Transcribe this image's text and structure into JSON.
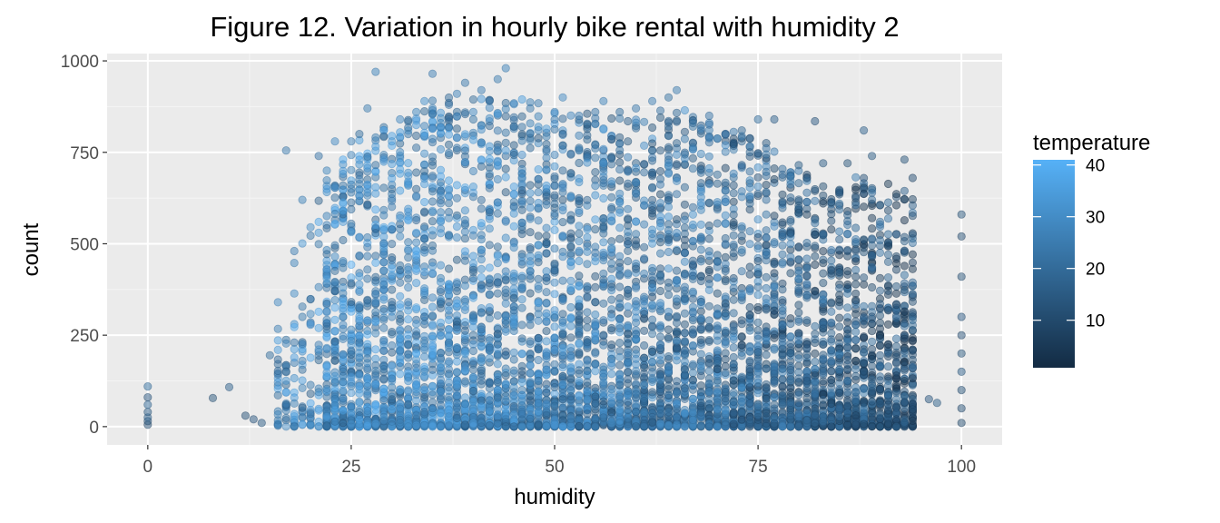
{
  "chart_data": {
    "type": "scatter",
    "title": "Figure 12. Variation in hourly bike rental with humidity 2",
    "xlabel": "humidity",
    "ylabel": "count",
    "xlim": [
      -5,
      105
    ],
    "ylim": [
      -50,
      1020
    ],
    "x_ticks": [
      0,
      25,
      50,
      75,
      100
    ],
    "x_tick_labels": [
      "0",
      "25",
      "50",
      "75",
      "100"
    ],
    "y_ticks": [
      0,
      250,
      500,
      750,
      1000
    ],
    "y_tick_labels": [
      "0",
      "250",
      "500",
      "750",
      "1000"
    ],
    "grid": true,
    "legend": {
      "title": "temperature",
      "placement": "right",
      "type": "colorbar",
      "range": [
        0.82,
        41
      ],
      "ticks": [
        10,
        20,
        30,
        40
      ],
      "tick_labels": [
        "10",
        "20",
        "30",
        "40"
      ],
      "color_low": "#132b43",
      "color_high": "#56b1f7"
    },
    "point_alpha": 0.5,
    "series": [
      {
        "points": [
          {
            "x": 0,
            "y": 5,
            "temp": 12
          },
          {
            "x": 0,
            "y": 15,
            "temp": 14
          },
          {
            "x": 0,
            "y": 25,
            "temp": 18
          },
          {
            "x": 0,
            "y": 40,
            "temp": 16
          },
          {
            "x": 0,
            "y": 60,
            "temp": 20
          },
          {
            "x": 0,
            "y": 80,
            "temp": 15
          },
          {
            "x": 0,
            "y": 110,
            "temp": 22
          },
          {
            "x": 8,
            "y": 78,
            "temp": 14
          },
          {
            "x": 10,
            "y": 108,
            "temp": 18
          },
          {
            "x": 12,
            "y": 30,
            "temp": 13
          },
          {
            "x": 13,
            "y": 20,
            "temp": 15
          },
          {
            "x": 14,
            "y": 10,
            "temp": 16
          },
          {
            "x": 15,
            "y": 195,
            "temp": 22
          },
          {
            "x": 16,
            "y": 340,
            "temp": 30
          },
          {
            "x": 17,
            "y": 755,
            "temp": 25
          },
          {
            "x": 17,
            "y": 60,
            "temp": 20
          },
          {
            "x": 18,
            "y": 480,
            "temp": 27
          },
          {
            "x": 18,
            "y": 230,
            "temp": 24
          },
          {
            "x": 19,
            "y": 620,
            "temp": 28
          },
          {
            "x": 19,
            "y": 300,
            "temp": 26
          },
          {
            "x": 20,
            "y": 545,
            "temp": 31
          },
          {
            "x": 20,
            "y": 90,
            "temp": 18
          },
          {
            "x": 21,
            "y": 740,
            "temp": 24
          },
          {
            "x": 22,
            "y": 700,
            "temp": 29
          },
          {
            "x": 22,
            "y": 430,
            "temp": 33
          },
          {
            "x": 23,
            "y": 780,
            "temp": 30
          },
          {
            "x": 24,
            "y": 590,
            "temp": 35
          },
          {
            "x": 24,
            "y": 10,
            "temp": 14
          },
          {
            "x": 25,
            "y": 780,
            "temp": 27
          },
          {
            "x": 26,
            "y": 800,
            "temp": 22
          },
          {
            "x": 27,
            "y": 870,
            "temp": 26
          },
          {
            "x": 28,
            "y": 970,
            "temp": 28
          },
          {
            "x": 29,
            "y": 730,
            "temp": 33
          },
          {
            "x": 30,
            "y": 780,
            "temp": 34
          },
          {
            "x": 31,
            "y": 840,
            "temp": 30
          },
          {
            "x": 32,
            "y": 800,
            "temp": 25
          },
          {
            "x": 33,
            "y": 860,
            "temp": 29
          },
          {
            "x": 34,
            "y": 890,
            "temp": 32
          },
          {
            "x": 35,
            "y": 965,
            "temp": 27
          },
          {
            "x": 36,
            "y": 820,
            "temp": 26
          },
          {
            "x": 37,
            "y": 880,
            "temp": 24
          },
          {
            "x": 38,
            "y": 910,
            "temp": 28
          },
          {
            "x": 39,
            "y": 940,
            "temp": 25
          },
          {
            "x": 40,
            "y": 860,
            "temp": 30
          },
          {
            "x": 41,
            "y": 920,
            "temp": 27
          },
          {
            "x": 42,
            "y": 890,
            "temp": 24
          },
          {
            "x": 43,
            "y": 950,
            "temp": 26
          },
          {
            "x": 44,
            "y": 980,
            "temp": 28
          },
          {
            "x": 45,
            "y": 820,
            "temp": 22
          },
          {
            "x": 47,
            "y": 870,
            "temp": 25
          },
          {
            "x": 50,
            "y": 860,
            "temp": 28
          },
          {
            "x": 51,
            "y": 900,
            "temp": 30
          },
          {
            "x": 53,
            "y": 850,
            "temp": 27
          },
          {
            "x": 55,
            "y": 860,
            "temp": 24
          },
          {
            "x": 56,
            "y": 890,
            "temp": 28
          },
          {
            "x": 58,
            "y": 860,
            "temp": 22
          },
          {
            "x": 60,
            "y": 870,
            "temp": 25
          },
          {
            "x": 62,
            "y": 890,
            "temp": 27
          },
          {
            "x": 64,
            "y": 900,
            "temp": 23
          },
          {
            "x": 65,
            "y": 920,
            "temp": 26
          },
          {
            "x": 67,
            "y": 830,
            "temp": 22
          },
          {
            "x": 69,
            "y": 850,
            "temp": 24
          },
          {
            "x": 71,
            "y": 800,
            "temp": 21
          },
          {
            "x": 73,
            "y": 810,
            "temp": 20
          },
          {
            "x": 75,
            "y": 840,
            "temp": 22
          },
          {
            "x": 77,
            "y": 840,
            "temp": 18
          },
          {
            "x": 80,
            "y": 715,
            "temp": 17
          },
          {
            "x": 82,
            "y": 835,
            "temp": 15
          },
          {
            "x": 83,
            "y": 720,
            "temp": 16
          },
          {
            "x": 86,
            "y": 720,
            "temp": 14
          },
          {
            "x": 88,
            "y": 810,
            "temp": 18
          },
          {
            "x": 89,
            "y": 740,
            "temp": 16
          },
          {
            "x": 93,
            "y": 730,
            "temp": 14
          },
          {
            "x": 94,
            "y": 680,
            "temp": 12
          },
          {
            "x": 96,
            "y": 75,
            "temp": 15
          },
          {
            "x": 97,
            "y": 65,
            "temp": 17
          },
          {
            "x": 100,
            "y": 580,
            "temp": 14
          },
          {
            "x": 100,
            "y": 520,
            "temp": 12
          },
          {
            "x": 100,
            "y": 410,
            "temp": 13
          },
          {
            "x": 100,
            "y": 300,
            "temp": 15
          },
          {
            "x": 100,
            "y": 250,
            "temp": 12
          },
          {
            "x": 100,
            "y": 200,
            "temp": 14
          },
          {
            "x": 100,
            "y": 150,
            "temp": 16
          },
          {
            "x": 100,
            "y": 100,
            "temp": 13
          },
          {
            "x": 100,
            "y": 50,
            "temp": 12
          },
          {
            "x": 100,
            "y": 10,
            "temp": 11
          }
        ]
      }
    ],
    "point_density": {
      "description_free_params": true,
      "x_range": [
        15,
        94
      ],
      "peak_humidity": 45,
      "max_count_by_humidity": [
        [
          15,
          200
        ],
        [
          20,
          620
        ],
        [
          25,
          780
        ],
        [
          30,
          830
        ],
        [
          35,
          900
        ],
        [
          40,
          900
        ],
        [
          45,
          900
        ],
        [
          50,
          880
        ],
        [
          55,
          860
        ],
        [
          60,
          860
        ],
        [
          65,
          880
        ],
        [
          70,
          820
        ],
        [
          75,
          800
        ],
        [
          80,
          700
        ],
        [
          85,
          650
        ],
        [
          88,
          700
        ],
        [
          94,
          640
        ]
      ],
      "temp_by_humidity": [
        [
          15,
          28
        ],
        [
          25,
          30
        ],
        [
          35,
          29
        ],
        [
          45,
          27
        ],
        [
          55,
          25
        ],
        [
          65,
          23
        ],
        [
          75,
          20
        ],
        [
          85,
          16
        ],
        [
          94,
          13
        ]
      ]
    }
  }
}
